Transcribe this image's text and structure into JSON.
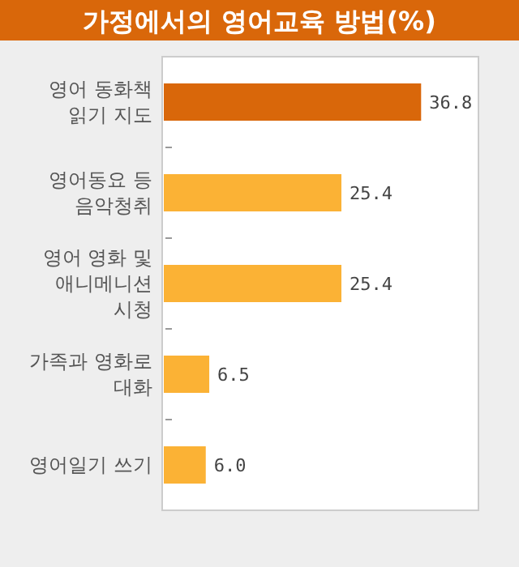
{
  "chart_data": {
    "type": "bar",
    "orientation": "horizontal",
    "title": "가정에서의 영어교육 방법(%)",
    "categories": [
      "영어 동화책\n읽기 지도",
      "영어동요 등\n음악청취",
      "영어 영화 및\n애니메니션\n시청",
      "가족과 영화로\n대화",
      "영어일기 쓰기"
    ],
    "values": [
      36.8,
      25.4,
      25.4,
      6.5,
      6.0
    ],
    "colors": [
      "#d9670a",
      "#fbb235",
      "#fbb235",
      "#fbb235",
      "#fbb235"
    ],
    "value_labels": [
      "36.8",
      "25.4",
      "25.4",
      "6.5",
      "6.0"
    ],
    "xlim": [
      0,
      45
    ],
    "tick_labels": "y"
  }
}
